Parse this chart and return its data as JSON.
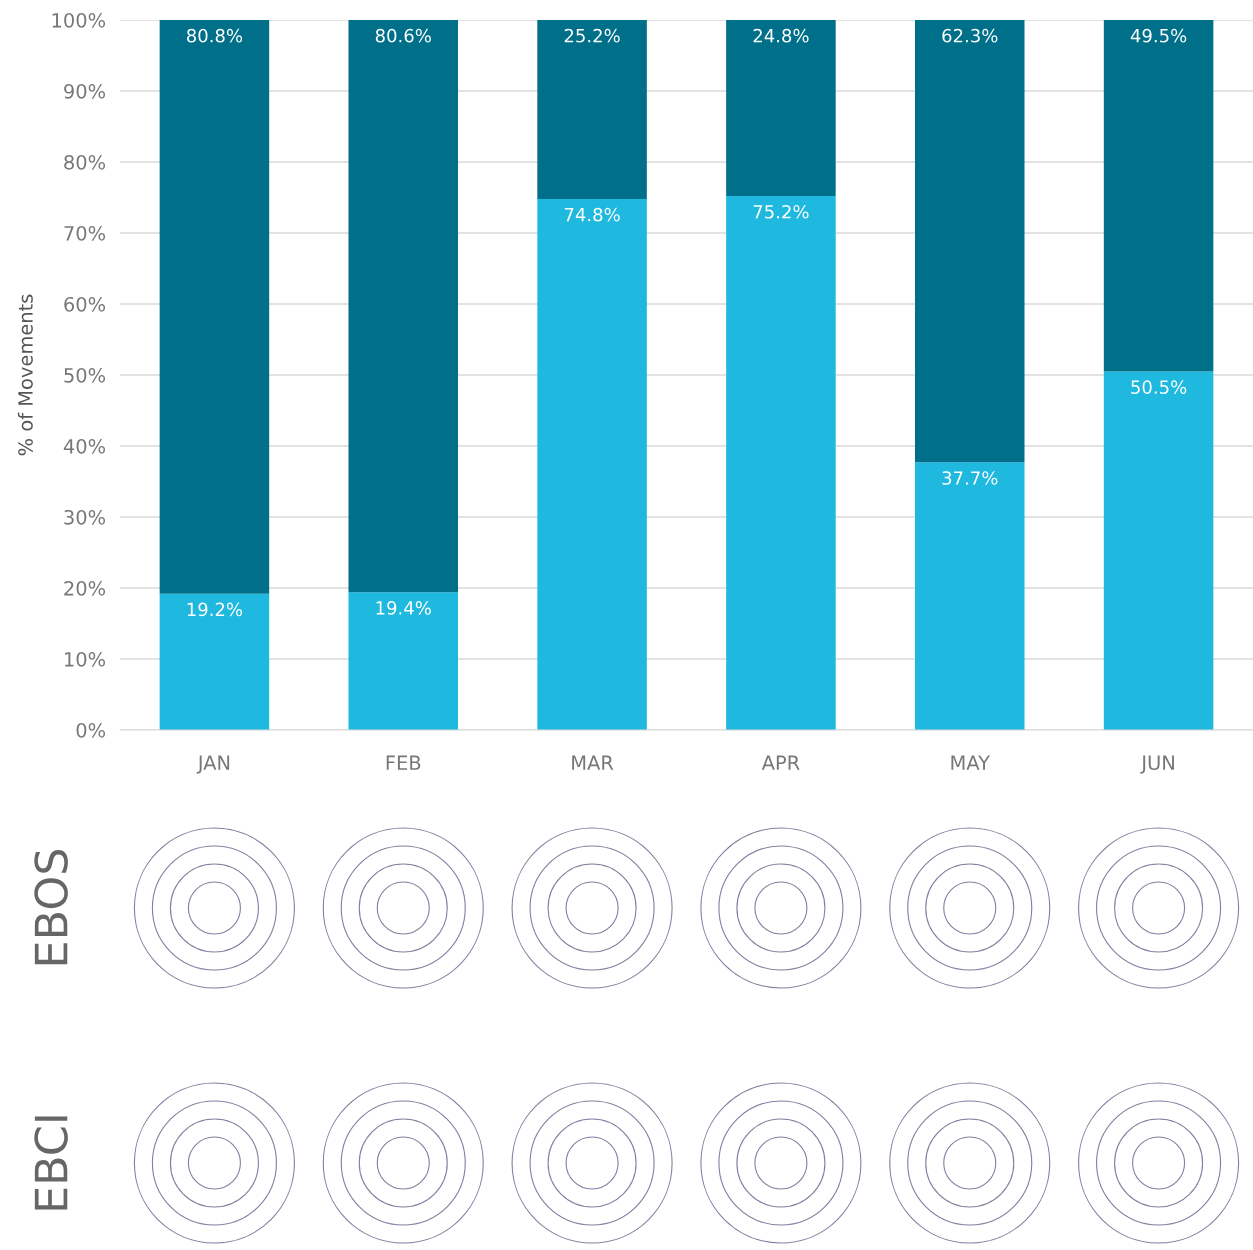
{
  "chart_data": {
    "type": "bar",
    "stacked": true,
    "ylabel": "% of Movements",
    "categories": [
      "JAN",
      "FEB",
      "MAR",
      "APR",
      "MAY",
      "JUN"
    ],
    "series": [
      {
        "color": "#1fb8df",
        "values": [
          19.2,
          19.4,
          74.8,
          75.2,
          37.7,
          50.5
        ],
        "value_labels": [
          "19.2%",
          "19.4%",
          "74.8%",
          "75.2%",
          "37.7%",
          "50.5%"
        ]
      },
      {
        "color": "#00708a",
        "values": [
          80.8,
          80.6,
          25.2,
          24.8,
          62.3,
          49.5
        ],
        "value_labels": [
          "80.8%",
          "80.6%",
          "25.2%",
          "24.8%",
          "62.3%",
          "49.5%"
        ]
      }
    ],
    "ylim": [
      0,
      100
    ],
    "yticks": [
      {
        "value": 0,
        "label": "0%"
      },
      {
        "value": 10,
        "label": "10%"
      },
      {
        "value": 20,
        "label": "20%"
      },
      {
        "value": 30,
        "label": "30%"
      },
      {
        "value": 40,
        "label": "40%"
      },
      {
        "value": 50,
        "label": "50%"
      },
      {
        "value": 60,
        "label": "60%"
      },
      {
        "value": 70,
        "label": "70%"
      },
      {
        "value": 80,
        "label": "80%"
      },
      {
        "value": 90,
        "label": "90%"
      },
      {
        "value": 100,
        "label": "100%"
      }
    ],
    "grid": "y",
    "annotations": [
      "EBOS",
      "EBCI"
    ]
  }
}
